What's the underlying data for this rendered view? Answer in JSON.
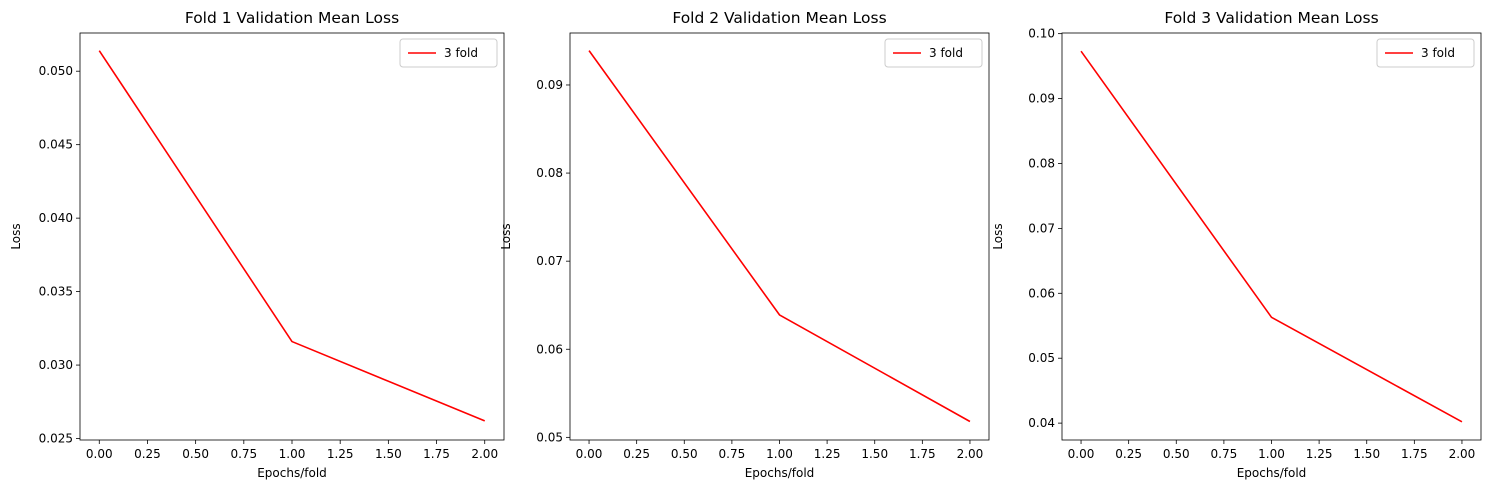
{
  "chart_data": [
    {
      "type": "line",
      "title": "Fold 1 Validation Mean Loss",
      "xlabel": "Epochs/fold",
      "ylabel": "Loss",
      "xlim": [
        -0.1,
        2.1
      ],
      "ylim": [
        0.0249,
        0.0526
      ],
      "xticks": [
        0.0,
        0.25,
        0.5,
        0.75,
        1.0,
        1.25,
        1.5,
        1.75,
        2.0
      ],
      "xtick_labels": [
        "0.00",
        "0.25",
        "0.50",
        "0.75",
        "1.00",
        "1.25",
        "1.50",
        "1.75",
        "2.00"
      ],
      "yticks": [
        0.025,
        0.03,
        0.035,
        0.04,
        0.045,
        0.05
      ],
      "ytick_labels": [
        "0.025",
        "0.030",
        "0.035",
        "0.040",
        "0.045",
        "0.050"
      ],
      "grid": false,
      "legend_position": "top-right",
      "series": [
        {
          "name": "3 fold",
          "color": "#ff0000",
          "x": [
            0,
            1,
            2
          ],
          "y": [
            0.0514,
            0.0316,
            0.0262
          ]
        }
      ]
    },
    {
      "type": "line",
      "title": "Fold 2 Validation Mean Loss",
      "xlabel": "Epochs/fold",
      "ylabel": "Loss",
      "xlim": [
        -0.1,
        2.1
      ],
      "ylim": [
        0.0497,
        0.0959
      ],
      "xticks": [
        0.0,
        0.25,
        0.5,
        0.75,
        1.0,
        1.25,
        1.5,
        1.75,
        2.0
      ],
      "xtick_labels": [
        "0.00",
        "0.25",
        "0.50",
        "0.75",
        "1.00",
        "1.25",
        "1.50",
        "1.75",
        "2.00"
      ],
      "yticks": [
        0.05,
        0.06,
        0.07,
        0.08,
        0.09
      ],
      "ytick_labels": [
        "0.05",
        "0.06",
        "0.07",
        "0.08",
        "0.09"
      ],
      "grid": false,
      "legend_position": "top-right",
      "series": [
        {
          "name": "3 fold",
          "color": "#ff0000",
          "x": [
            0,
            1,
            2
          ],
          "y": [
            0.0939,
            0.0639,
            0.0518
          ]
        }
      ]
    },
    {
      "type": "line",
      "title": "Fold 3 Validation Mean Loss",
      "xlabel": "Epochs/fold",
      "ylabel": "Loss",
      "xlim": [
        -0.1,
        2.1
      ],
      "ylim": [
        0.0374,
        0.1001
      ],
      "xticks": [
        0.0,
        0.25,
        0.5,
        0.75,
        1.0,
        1.25,
        1.5,
        1.75,
        2.0
      ],
      "xtick_labels": [
        "0.00",
        "0.25",
        "0.50",
        "0.75",
        "1.00",
        "1.25",
        "1.50",
        "1.75",
        "2.00"
      ],
      "yticks": [
        0.04,
        0.05,
        0.06,
        0.07,
        0.08,
        0.09,
        0.1
      ],
      "ytick_labels": [
        "0.04",
        "0.05",
        "0.06",
        "0.07",
        "0.08",
        "0.09",
        "0.10"
      ],
      "grid": false,
      "legend_position": "top-right",
      "series": [
        {
          "name": "3 fold",
          "color": "#ff0000",
          "x": [
            0,
            1,
            2
          ],
          "y": [
            0.0973,
            0.0563,
            0.0402
          ]
        }
      ]
    }
  ]
}
